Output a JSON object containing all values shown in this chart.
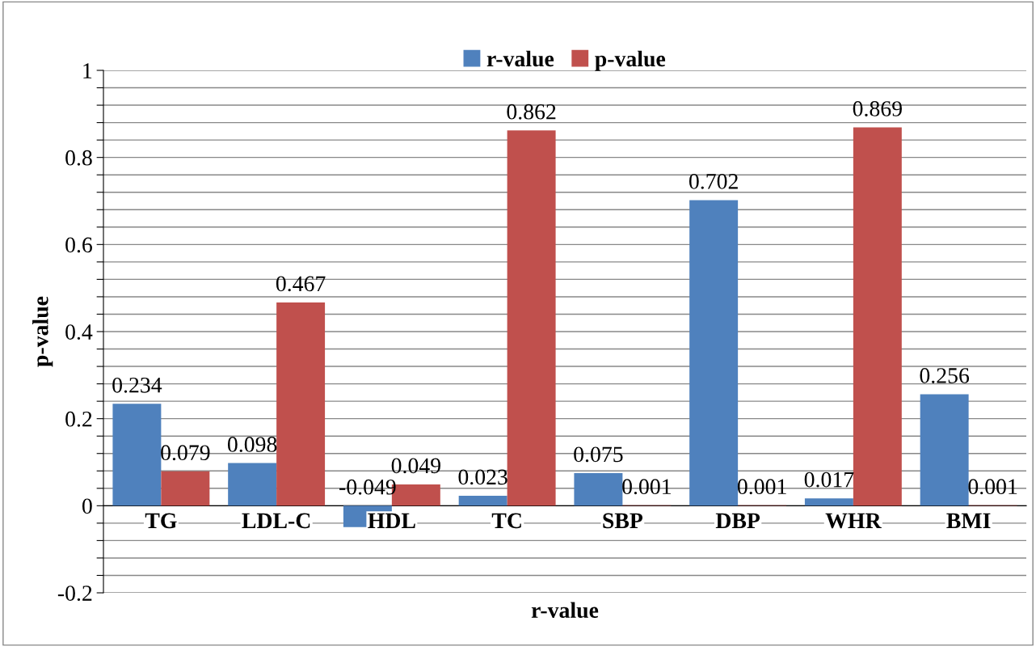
{
  "chart_data": {
    "type": "bar",
    "xlabel": "r-value",
    "ylabel": "p-value",
    "categories": [
      "TG",
      "LDL-C",
      "HDL",
      "TC",
      "SBP",
      "DBP",
      "WHR",
      "BMI"
    ],
    "series": [
      {
        "name": "r-value",
        "color": "#4f81bd",
        "values": [
          0.234,
          0.098,
          -0.049,
          0.023,
          0.075,
          0.702,
          0.017,
          0.256
        ]
      },
      {
        "name": "p-value",
        "color": "#c0504d",
        "values": [
          0.079,
          0.467,
          0.049,
          0.862,
          0.001,
          0.001,
          0.869,
          0.001
        ]
      }
    ],
    "ylim": [
      -0.2,
      1
    ],
    "yticks": [
      -0.2,
      {
        "value": -0.16,
        "label": null
      },
      {
        "value": -0.12,
        "label": null
      },
      {
        "value": -0.08,
        "label": null
      },
      {
        "value": -0.04,
        "label": null
      },
      0,
      {
        "value": 0.04,
        "label": null
      },
      {
        "value": 0.08,
        "label": null
      },
      {
        "value": 0.12,
        "label": null
      },
      {
        "value": 0.16,
        "label": null
      },
      0.2,
      {
        "value": 0.24,
        "label": null
      },
      {
        "value": 0.28,
        "label": null
      },
      {
        "value": 0.32,
        "label": null
      },
      {
        "value": 0.36,
        "label": null
      },
      0.4,
      {
        "value": 0.44,
        "label": null
      },
      {
        "value": 0.48,
        "label": null
      },
      {
        "value": 0.52,
        "label": null
      },
      {
        "value": 0.56,
        "label": null
      },
      0.6,
      {
        "value": 0.64,
        "label": null
      },
      {
        "value": 0.68,
        "label": null
      },
      {
        "value": 0.72,
        "label": null
      },
      {
        "value": 0.76,
        "label": null
      },
      0.8,
      {
        "value": 0.84,
        "label": null
      },
      {
        "value": 0.88,
        "label": null
      },
      {
        "value": 0.92,
        "label": null
      },
      {
        "value": 0.96,
        "label": null
      },
      1
    ],
    "grid": "y",
    "legend": "top",
    "data_labels": true
  }
}
